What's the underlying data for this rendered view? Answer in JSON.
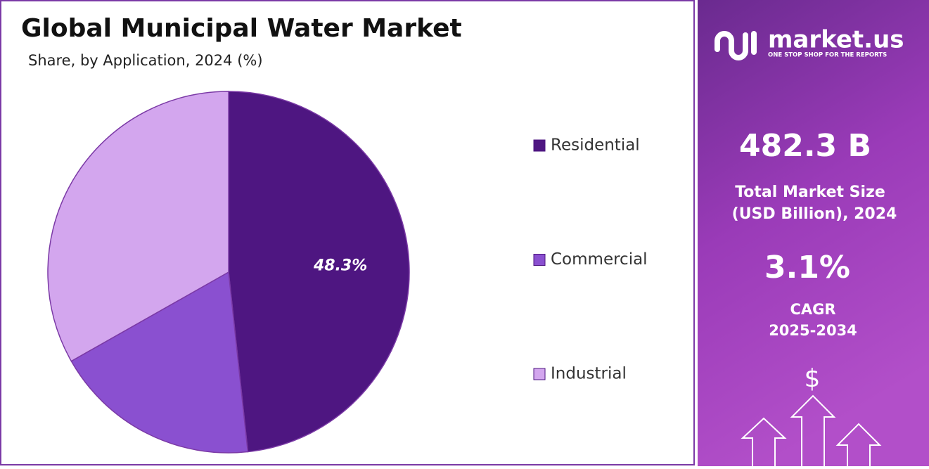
{
  "chart_data": {
    "type": "pie",
    "title": "Global Municipal Water Market",
    "subtitle": "Share, by Application, 2024 (%)",
    "categories": [
      "Residential",
      "Commercial",
      "Industrial"
    ],
    "values": [
      48.3,
      18.5,
      33.2
    ],
    "value_labels": [
      "48.3%",
      null,
      null
    ],
    "colors": [
      "#4e1681",
      "#8a50d0",
      "#d3a6ee"
    ]
  },
  "sidebar": {
    "brand": "market.us",
    "tagline": "ONE STOP SHOP FOR THE REPORTS",
    "market_size": "482.3 B",
    "market_size_label_1": "Total Market Size",
    "market_size_label_2": "(USD Billion), 2024",
    "cagr": "3.1%",
    "cagr_label_1": "CAGR",
    "cagr_label_2": "2025-2034",
    "currency_symbol": "$"
  }
}
